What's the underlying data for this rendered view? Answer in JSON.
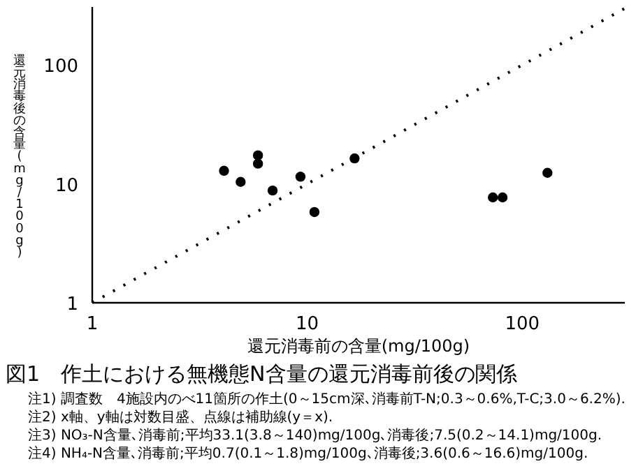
{
  "chart_data": {
    "type": "scatter",
    "title": "図1　作土における無機態N含量の還元消毒前後の関係",
    "xlabel": "還元消毒前の含量(mg/100g)",
    "ylabel": "還元消毒後の含量(mg/100g)",
    "annotations": [
      "注1) 調査数　4施設内のべ11箇所の作土(0～15cm深､消毒前T-N;0.3～0.6%,T-C;3.0～6.2%).",
      "注2) x軸、y軸は対数目盛、点線は補助線(y＝x).",
      "注3) NO₃-N含量､消毒前;平均33.1(3.8～140)mg/100g､消毒後;7.5(0.2～14.1)mg/100g.",
      "注4) NH₄-N含量､消毒前;平均0.7(0.1～1.8)mg/100g､消毒後;3.6(0.6～16.6)mg/100g."
    ],
    "series": [
      {
        "type": "scatter",
        "color": "#000000",
        "marker": "circle",
        "x": [
          4.1,
          4.9,
          5.9,
          5.9,
          6.9,
          9.3,
          10.8,
          16.6,
          73,
          81,
          131
        ],
        "values": [
          12.9,
          10.4,
          17.4,
          14.8,
          8.8,
          11.5,
          5.8,
          16.4,
          7.7,
          7.7,
          12.4
        ]
      },
      {
        "type": "line",
        "color": "#000000",
        "marker": "none",
        "line_style": "dotted",
        "x": [
          1,
          300
        ],
        "values": [
          1,
          300
        ]
      }
    ],
    "log": "xy",
    "xlim": [
      1,
      300
    ],
    "ylim": [
      1,
      300
    ],
    "xticks": [
      1,
      10,
      100
    ],
    "yticks": [
      1,
      10,
      100
    ],
    "grid": false,
    "legend": false
  }
}
